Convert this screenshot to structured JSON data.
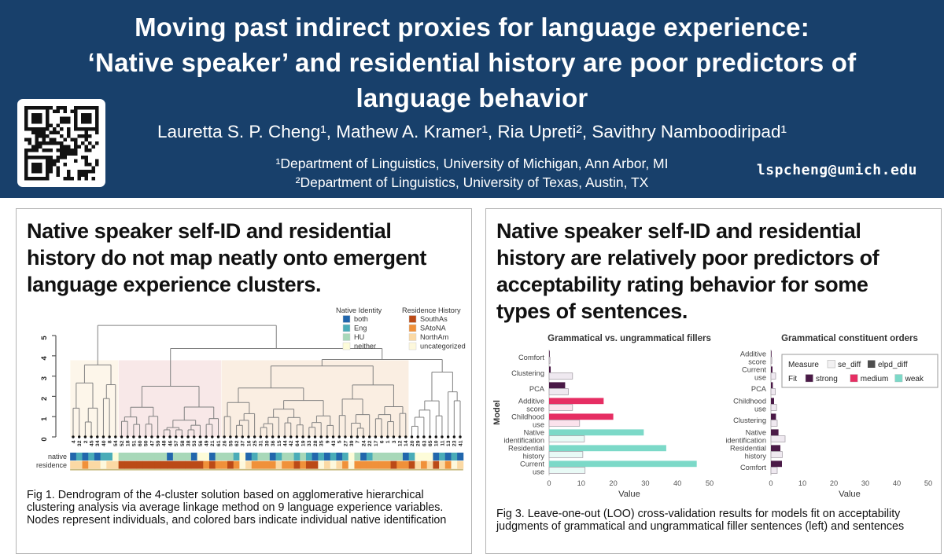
{
  "header": {
    "title_lines": [
      "Moving past indirect proxies for language experience:",
      "‘Native speaker’ and residential history are poor predictors of",
      "language behavior"
    ],
    "authors": "Lauretta S. P. Cheng¹, Mathew A. Kramer¹, Ria Upreti², Savithry Namboodiripad¹",
    "affiliations": [
      "¹Department of Linguistics, University of Michigan, Ann Arbor, MI",
      "²Department of Linguistics, University of Texas, Austin, TX"
    ],
    "email": "lspcheng@umich.edu",
    "bg_color": "#18406b"
  },
  "left_panel": {
    "heading": "Native speaker self-ID and residential history do not map neatly onto emergent language experience clusters.",
    "caption": "Fig 1. Dendrogram of the 4-cluster solution based on agglomerative hierarchical clustering analysis via average linkage method on 9 language experience variables. Nodes represent individuals, and colored bars indicate individual native identification"
  },
  "right_panel": {
    "heading": "Native speaker self-ID and residential history are relatively poor predictors of acceptability rating behavior for some types of sentences.",
    "caption": "Fig 3. Leave-one-out (LOO) cross-validation results for models fit on acceptability judgments of grammatical and ungrammatical filler sentences (left) and sentences"
  },
  "chart_data": [
    {
      "type": "dendrogram",
      "ylim": [
        0,
        5
      ],
      "yticks": [
        0,
        1,
        2,
        3,
        4,
        5
      ],
      "leaves": [
        "4",
        "32",
        "2",
        "45",
        "34",
        "40",
        "8",
        "54",
        "52",
        "18",
        "51",
        "60",
        "50",
        "47",
        "59",
        "48",
        "46",
        "57",
        "58",
        "38",
        "53",
        "56",
        "49",
        "21",
        "61",
        "26",
        "55",
        "62",
        "37",
        "16",
        "25",
        "31",
        "30",
        "36",
        "15",
        "44",
        "42",
        "64",
        "19",
        "33",
        "28",
        "35",
        "9",
        "43",
        "5",
        "27",
        "39",
        "7",
        "24",
        "22",
        "17",
        "6",
        "1",
        "3",
        "12",
        "14",
        "20",
        "29",
        "63",
        "65",
        "10",
        "11",
        "13",
        "23",
        "41"
      ],
      "row_labels": [
        "native",
        "residence"
      ],
      "legend": {
        "native_identity": {
          "title": "Native Identity",
          "items": [
            {
              "label": "both",
              "color": "#2166ac"
            },
            {
              "label": "Eng",
              "color": "#4aacb8"
            },
            {
              "label": "HU",
              "color": "#a8d8b9"
            },
            {
              "label": "neither",
              "color": "#fdfcd9"
            }
          ]
        },
        "residence_history": {
          "title": "Residence History",
          "items": [
            {
              "label": "SouthAs",
              "color": "#bb4a17"
            },
            {
              "label": "SAtoNA",
              "color": "#f0913a"
            },
            {
              "label": "NorthAm",
              "color": "#fbd9a4"
            },
            {
              "label": "uncategorized",
              "color": "#fdf8dc"
            }
          ]
        }
      },
      "native_codes": {
        "b": "both",
        "e": "Eng",
        "h": "HU",
        "n": "neither"
      },
      "residence_codes": {
        "s": "SouthAs",
        "a": "SAtoNA",
        "m": "NorthAm",
        "u": "uncategorized"
      },
      "native": [
        "b",
        "e",
        "b",
        "e",
        "b",
        "e",
        "e",
        "n",
        "h",
        "h",
        "h",
        "h",
        "h",
        "h",
        "h",
        "h",
        "b",
        "h",
        "h",
        "h",
        "b",
        "n",
        "n",
        "b",
        "h",
        "h",
        "h",
        "e",
        "n",
        "b",
        "e",
        "h",
        "h",
        "b",
        "e",
        "h",
        "h",
        "e",
        "h",
        "e",
        "b",
        "e",
        "b",
        "e",
        "b",
        "e",
        "n",
        "h",
        "b",
        "e",
        "h",
        "h",
        "h",
        "h",
        "h",
        "b",
        "e",
        "n",
        "n",
        "n",
        "b",
        "e",
        "b",
        "e",
        "b"
      ],
      "residence": [
        "m",
        "m",
        "a",
        "m",
        "m",
        "u",
        "m",
        "m",
        "s",
        "s",
        "s",
        "s",
        "s",
        "s",
        "s",
        "s",
        "s",
        "s",
        "s",
        "s",
        "s",
        "s",
        "a",
        "s",
        "a",
        "a",
        "s",
        "a",
        "u",
        "m",
        "a",
        "a",
        "a",
        "a",
        "m",
        "a",
        "a",
        "s",
        "a",
        "s",
        "s",
        "u",
        "m",
        "u",
        "m",
        "a",
        "u",
        "a",
        "a",
        "a",
        "a",
        "a",
        "a",
        "s",
        "a",
        "a",
        "s",
        "m",
        "a",
        "m",
        "s",
        "m",
        "a",
        "u",
        "m"
      ],
      "clusters": [
        {
          "from": 0,
          "to": 7,
          "top": 3.55,
          "shade": "#fdf6ea",
          "shade_top": 3.78
        },
        {
          "from": 8,
          "to": 24,
          "top": 2.5,
          "shade": "#f8e8e8",
          "shade_top": 3.78
        },
        {
          "from": 25,
          "to": 55,
          "top": 3.5,
          "shade": "#faeee2",
          "shade_top": 3.78
        },
        {
          "from": 56,
          "to": 64,
          "top": 3.2,
          "shade": "none",
          "shade_top": null
        }
      ],
      "join_heights": {
        "root": 5.5,
        "b_cd": 4.36,
        "c_d": 3.82
      }
    },
    {
      "type": "bar",
      "orientation": "horizontal",
      "title": "Grammatical vs. ungrammatical fillers",
      "xlabel": "Value",
      "ylabel": "Model",
      "xlim": [
        0,
        50
      ],
      "xticks": [
        0,
        10,
        20,
        30,
        40,
        50
      ],
      "categories": [
        "Comfort",
        "Clustering",
        "PCA",
        "Additive score",
        "Childhood use",
        "Native identification",
        "Residential history",
        "Current use"
      ],
      "fit": [
        "strong",
        "strong",
        "strong",
        "medium",
        "medium",
        "weak",
        "weak",
        "weak"
      ],
      "series": [
        {
          "name": "elpd_diff",
          "values": [
            0.2,
            0.5,
            5,
            17,
            20,
            29.5,
            36.5,
            46
          ]
        },
        {
          "name": "se_diff",
          "values": [
            0.3,
            7.3,
            6,
            7.3,
            9.5,
            11,
            10.5,
            11.2
          ]
        }
      ]
    },
    {
      "type": "bar",
      "orientation": "horizontal",
      "title": "Grammatical constituent orders",
      "xlabel": "Value",
      "ylabel": "",
      "xlim": [
        0,
        50
      ],
      "xticks": [
        0,
        10,
        20,
        30,
        40,
        50
      ],
      "categories": [
        "Additive score",
        "Current use",
        "PCA",
        "Childhood use",
        "Clustering",
        "Native identification",
        "Residential history",
        "Comfort"
      ],
      "fit": [
        "strong",
        "strong",
        "strong",
        "strong",
        "strong",
        "strong",
        "strong",
        "strong"
      ],
      "series": [
        {
          "name": "elpd_diff",
          "values": [
            0.15,
            0.5,
            0.6,
            1.0,
            1.6,
            2.4,
            3.0,
            3.5
          ]
        },
        {
          "name": "se_diff",
          "values": [
            0.3,
            1.5,
            1.4,
            1.8,
            2.0,
            4.5,
            3.6,
            2.0
          ]
        }
      ],
      "legend": {
        "measure": {
          "title": "Measure",
          "items": [
            "se_diff",
            "elpd_diff"
          ]
        },
        "fit": {
          "title": "Fit",
          "items": [
            "strong",
            "medium",
            "weak"
          ]
        }
      }
    }
  ],
  "chart_style": {
    "fit_colors": {
      "strong": "#4a1a47",
      "medium": "#e62e63",
      "weak": "#7cd9c8"
    },
    "se_tints": {
      "strong": "#efe9f0",
      "medium": "#fbe2ec",
      "weak": "#e9faf6"
    },
    "se_swatch": "#f2f1f2",
    "elpd_swatch": "#4d4d4d"
  }
}
